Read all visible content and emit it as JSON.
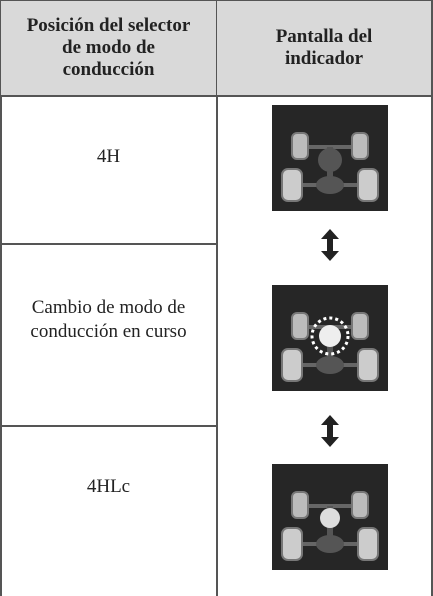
{
  "table": {
    "header": [
      "Posición del selector de modo de conducción",
      "Pantalla del indicador"
    ],
    "rows": [
      {
        "label": "4H"
      },
      {
        "label": "Cambio de modo de conducción en curso"
      },
      {
        "label": "4HLc"
      }
    ]
  }
}
